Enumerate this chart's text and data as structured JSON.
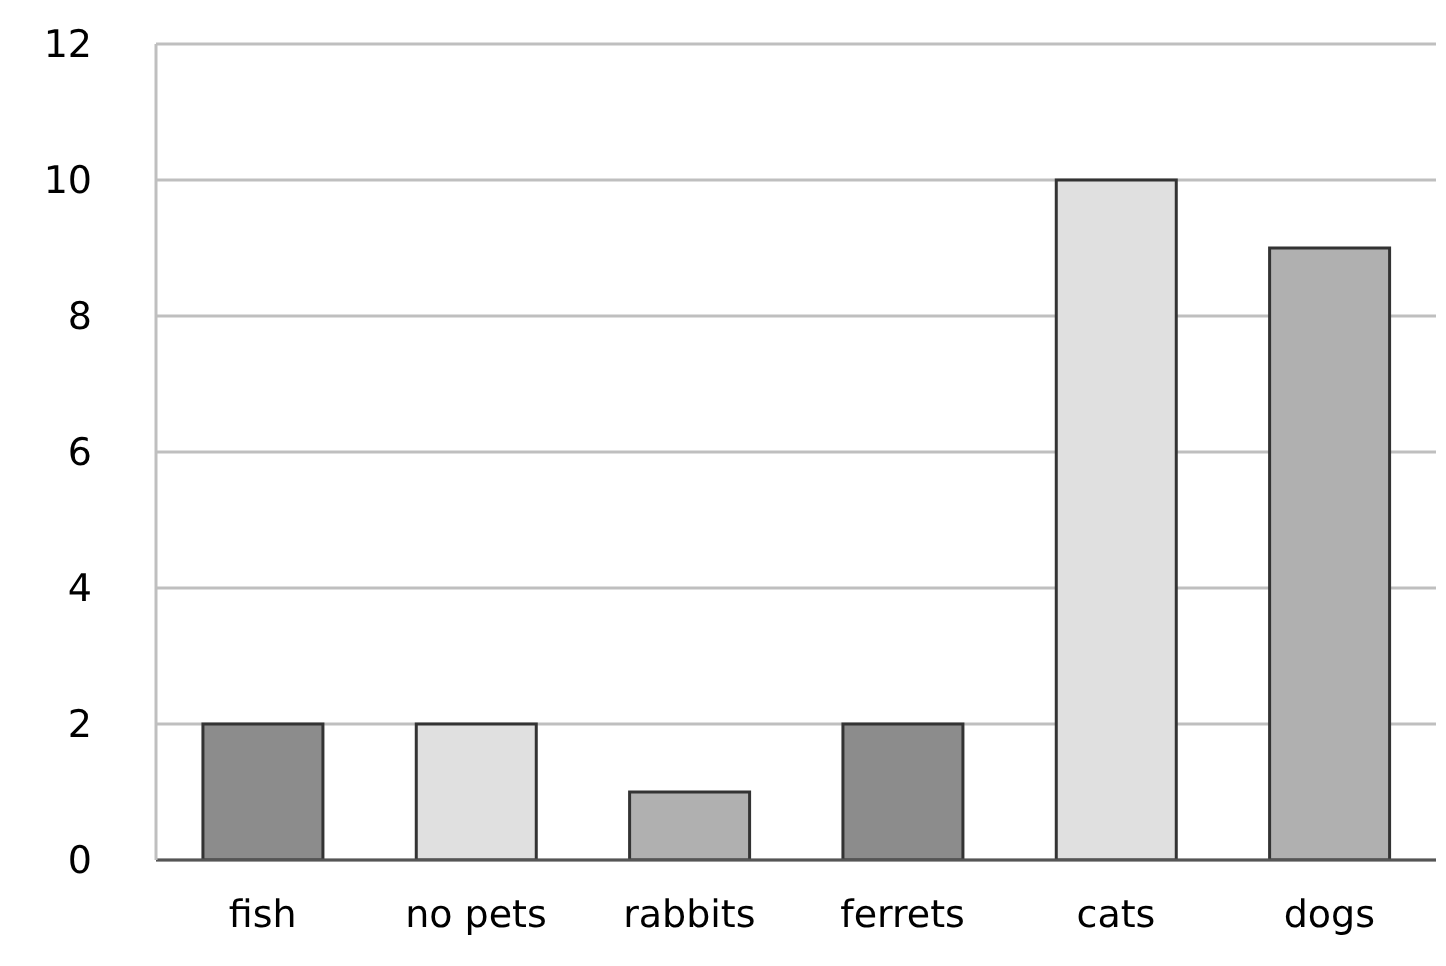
{
  "chart_data": {
    "type": "bar",
    "categories": [
      "fish",
      "no pets",
      "rabbits",
      "ferrets",
      "cats",
      "dogs"
    ],
    "values": [
      2,
      2,
      1,
      2,
      10,
      9
    ],
    "colors": [
      "#8c8c8c",
      "#e0e0e0",
      "#b0b0b0",
      "#8c8c8c",
      "#e0e0e0",
      "#b0b0b0"
    ],
    "ylim": [
      0,
      12
    ],
    "yticks": [
      0,
      2,
      4,
      6,
      8,
      10,
      12
    ],
    "grid": "y"
  }
}
